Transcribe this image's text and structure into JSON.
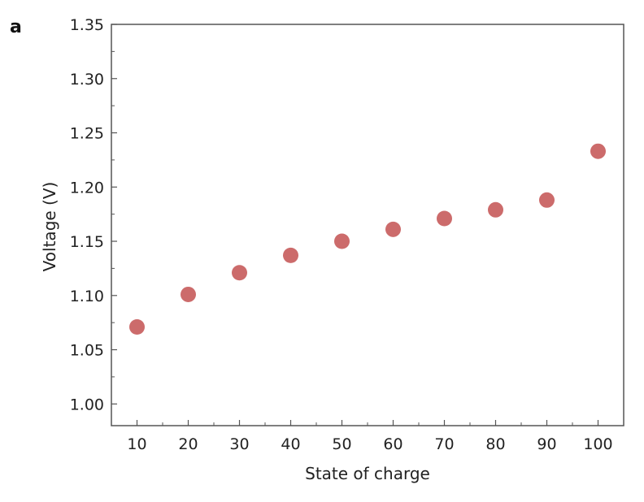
{
  "panel_label": "a",
  "chart_data": {
    "type": "scatter",
    "title": "",
    "xlabel": "State of charge",
    "ylabel": "Voltage (V)",
    "x": [
      10,
      20,
      30,
      40,
      50,
      60,
      70,
      80,
      90,
      100
    ],
    "y": [
      1.071,
      1.101,
      1.121,
      1.137,
      1.15,
      1.161,
      1.171,
      1.179,
      1.188,
      1.233
    ],
    "xlim": [
      5,
      105
    ],
    "ylim": [
      0.98,
      1.35
    ],
    "xticks": [
      10,
      20,
      30,
      40,
      50,
      60,
      70,
      80,
      90,
      100
    ],
    "xtick_labels": [
      "10",
      "20",
      "30",
      "40",
      "50",
      "60",
      "70",
      "80",
      "90",
      "100"
    ],
    "yticks": [
      1.0,
      1.05,
      1.1,
      1.15,
      1.2,
      1.25,
      1.3,
      1.35
    ],
    "ytick_labels": [
      "1.00",
      "1.05",
      "1.10",
      "1.15",
      "1.20",
      "1.25",
      "1.30",
      "1.35"
    ],
    "grid": false,
    "legend": "none",
    "marker_color": "#cc6b6b",
    "axis_color": "#555555"
  }
}
